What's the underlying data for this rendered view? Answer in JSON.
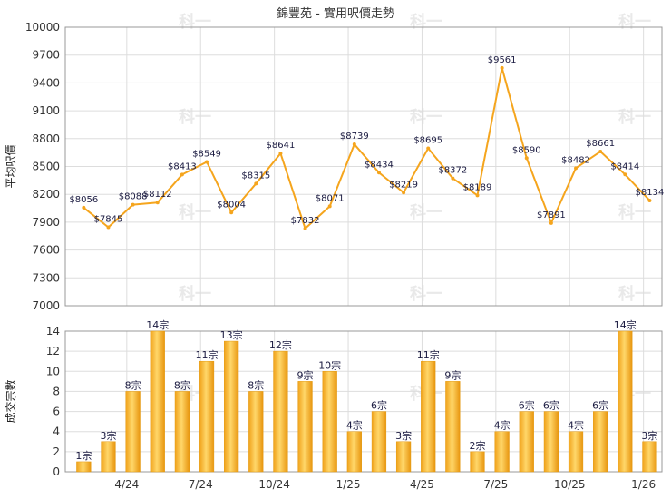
{
  "chart_data": [
    {
      "type": "line",
      "title": "錦豐苑 - 實用呎價走勢",
      "ylabel": "平均呎價",
      "ylim": [
        7000,
        10000
      ],
      "yticks": [
        7000,
        7300,
        7600,
        7900,
        8200,
        8500,
        8800,
        9100,
        9400,
        9700,
        10000
      ],
      "x_tick_labels": [
        "4/24",
        "7/24",
        "10/24",
        "1/25",
        "4/25",
        "7/25",
        "10/25",
        "1/26"
      ],
      "grid": true,
      "color": "#f5a51d",
      "points": [
        {
          "x": 1,
          "y": 8056,
          "label": "$8056"
        },
        {
          "x": 2,
          "y": 7845,
          "label": "$7845"
        },
        {
          "x": 3,
          "y": 8088,
          "label": "$8088"
        },
        {
          "x": 4,
          "y": 8112,
          "label": "$8112"
        },
        {
          "x": 5,
          "y": 8413,
          "label": "$8413"
        },
        {
          "x": 6,
          "y": 8549,
          "label": "$8549"
        },
        {
          "x": 7,
          "y": 8004,
          "label": "$8004"
        },
        {
          "x": 8,
          "y": 8315,
          "label": "$8315"
        },
        {
          "x": 9,
          "y": 8641,
          "label": "$8641"
        },
        {
          "x": 10,
          "y": 7832,
          "label": "$7832"
        },
        {
          "x": 11,
          "y": 8071,
          "label": "$8071"
        },
        {
          "x": 12,
          "y": 8739,
          "label": "$8739"
        },
        {
          "x": 13,
          "y": 8434,
          "label": "$8434"
        },
        {
          "x": 14,
          "y": 8219,
          "label": "$8219"
        },
        {
          "x": 15,
          "y": 8695,
          "label": "$8695"
        },
        {
          "x": 16,
          "y": 8372,
          "label": "$8372"
        },
        {
          "x": 17,
          "y": 8189,
          "label": "$8189"
        },
        {
          "x": 18,
          "y": 9561,
          "label": "$9561"
        },
        {
          "x": 19,
          "y": 8590,
          "label": "$8590"
        },
        {
          "x": 20,
          "y": 7891,
          "label": "$7891"
        },
        {
          "x": 21,
          "y": 8482,
          "label": "$8482"
        },
        {
          "x": 22,
          "y": 8661,
          "label": "$8661"
        },
        {
          "x": 23,
          "y": 8414,
          "label": "$8414"
        },
        {
          "x": 24,
          "y": 8134,
          "label": "$8134"
        }
      ]
    },
    {
      "type": "bar",
      "ylabel": "成交宗數",
      "ylim": [
        0,
        14
      ],
      "yticks": [
        0,
        2,
        4,
        6,
        8,
        10,
        12,
        14
      ],
      "x_tick_labels": [
        "4/24",
        "7/24",
        "10/24",
        "1/25",
        "4/25",
        "7/25",
        "10/25",
        "1/26"
      ],
      "grid": true,
      "color": "#f5a51d",
      "values": [
        1,
        3,
        8,
        14,
        8,
        11,
        13,
        8,
        12,
        9,
        10,
        4,
        6,
        3,
        11,
        9,
        2,
        4,
        6,
        6,
        4,
        6,
        14,
        3
      ],
      "labels": [
        "1宗",
        "3宗",
        "8宗",
        "14宗",
        "8宗",
        "11宗",
        "13宗",
        "8宗",
        "12宗",
        "9宗",
        "10宗",
        "4宗",
        "6宗",
        "3宗",
        "11宗",
        "9宗",
        "2宗",
        "4宗",
        "6宗",
        "6宗",
        "4宗",
        "6宗",
        "14宗",
        "3宗"
      ]
    }
  ]
}
